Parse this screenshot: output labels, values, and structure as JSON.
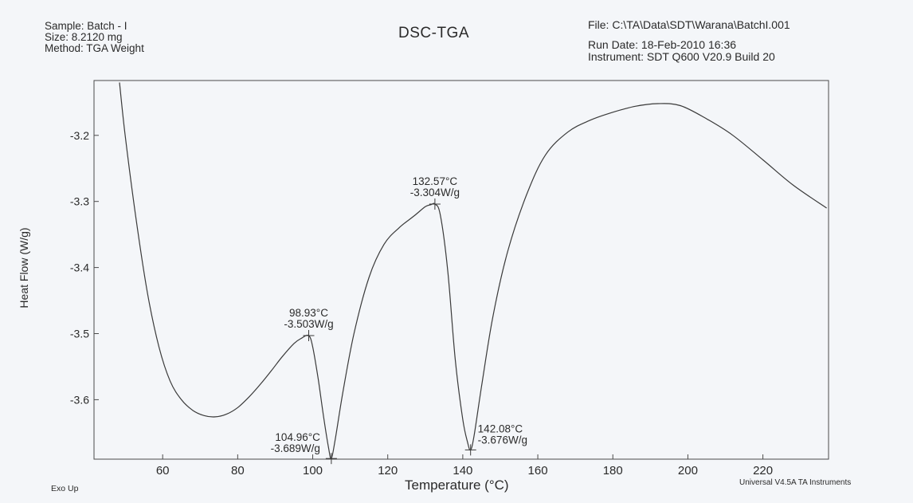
{
  "header": {
    "sample": "Sample: Batch - I",
    "size": "Size: 8.2120 mg",
    "method": "Method: TGA Weight",
    "file": "File: C:\\TA\\Data\\SDT\\Warana\\BatchI.001",
    "run_date": "Run Date: 18-Feb-2010 16:36",
    "instrument": "Instrument: SDT Q600 V20.9 Build 20"
  },
  "footer": {
    "exo_up": "Exo Up",
    "software": "Universal V4.5A TA Instruments"
  },
  "colors": {
    "background": "#f4f6f9",
    "line": "#3a3a3a"
  },
  "chart_data": {
    "type": "line",
    "title": "DSC-TGA",
    "xlabel": "Temperature (°C)",
    "ylabel": "Heat Flow (W/g)",
    "xlim": [
      41.7,
      237.5
    ],
    "ylim": [
      -3.69,
      -3.117
    ],
    "xticks": [
      60,
      80,
      100,
      120,
      140,
      160,
      180,
      200,
      220
    ],
    "yticks": [
      -3.2,
      -3.3,
      -3.4,
      -3.5,
      -3.6
    ],
    "xtick_labels": [
      "60",
      "80",
      "100",
      "120",
      "140",
      "160",
      "180",
      "200",
      "220"
    ],
    "ytick_labels": [
      "-3.2",
      "-3.3",
      "-3.4",
      "-3.5",
      "-3.6"
    ],
    "grid": false,
    "series": [
      {
        "x": [
          48.5,
          50,
          53,
          56,
          59,
          62,
          65,
          68,
          71,
          74,
          77,
          80,
          83,
          86,
          89,
          92,
          95,
          97,
          98.93,
          100,
          101.5,
          103,
          104.2,
          104.96,
          106,
          108,
          111,
          115,
          119,
          123,
          127,
          130,
          131.5,
          132.57,
          134,
          136,
          138,
          140,
          141.3,
          142.08,
          143,
          145,
          148,
          152,
          157,
          162,
          168,
          174,
          180,
          186,
          192,
          198,
          205,
          212,
          220,
          228,
          237
        ],
        "y": [
          -3.12,
          -3.2,
          -3.33,
          -3.44,
          -3.52,
          -3.572,
          -3.6,
          -3.616,
          -3.624,
          -3.626,
          -3.622,
          -3.612,
          -3.596,
          -3.577,
          -3.556,
          -3.534,
          -3.515,
          -3.507,
          -3.503,
          -3.52,
          -3.57,
          -3.63,
          -3.672,
          -3.689,
          -3.66,
          -3.59,
          -3.5,
          -3.415,
          -3.365,
          -3.34,
          -3.322,
          -3.308,
          -3.305,
          -3.304,
          -3.32,
          -3.405,
          -3.54,
          -3.63,
          -3.665,
          -3.676,
          -3.655,
          -3.58,
          -3.475,
          -3.375,
          -3.29,
          -3.23,
          -3.195,
          -3.177,
          -3.165,
          -3.156,
          -3.152,
          -3.155,
          -3.175,
          -3.2,
          -3.237,
          -3.275,
          -3.31
        ]
      }
    ],
    "annotations": [
      {
        "x": 98.93,
        "y": -3.503,
        "line1": "98.93°C",
        "line2": "-3.503W/g",
        "position": "above"
      },
      {
        "x": 104.96,
        "y": -3.689,
        "line1": "104.96°C",
        "line2": "-3.689W/g",
        "position": "left"
      },
      {
        "x": 132.57,
        "y": -3.304,
        "line1": "132.57°C",
        "line2": "-3.304W/g",
        "position": "above"
      },
      {
        "x": 142.08,
        "y": -3.676,
        "line1": "142.08°C",
        "line2": "-3.676W/g",
        "position": "right"
      }
    ]
  }
}
